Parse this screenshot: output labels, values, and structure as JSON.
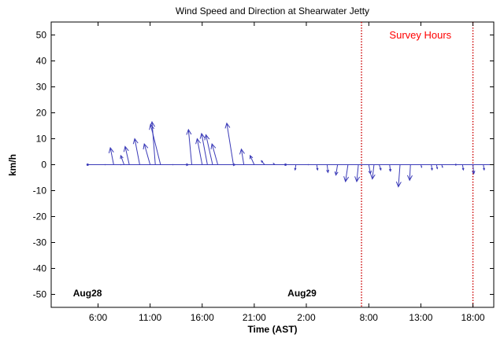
{
  "chart_data": {
    "type": "quiver",
    "title": "Wind Speed and Direction at Shearwater Jetty",
    "xlabel": "Time (AST)",
    "ylabel": "km/h",
    "x_tick_labels": [
      "6:00",
      "11:00",
      "16:00",
      "21:00",
      "2:00",
      "8:00",
      "13:00",
      "18:00"
    ],
    "x_tick_hours": [
      6,
      11,
      16,
      21,
      26,
      32,
      37,
      42
    ],
    "xlim_hours": [
      1.5,
      44
    ],
    "ylim": [
      -55,
      55
    ],
    "y_ticks": [
      -50,
      -40,
      -30,
      -20,
      -10,
      0,
      10,
      20,
      30,
      40,
      50
    ],
    "grid": false,
    "date_labels": [
      {
        "text": "Aug28",
        "hour": 3.6
      },
      {
        "text": "Aug29",
        "hour": 24.2
      }
    ],
    "survey": {
      "label": "Survey Hours",
      "start_hour": 31.3,
      "end_hour": 42.0,
      "color": "#cc0000"
    },
    "arrow_color": "#3b3bb8",
    "vectors": [
      {
        "hour": 5.0,
        "u": 0.3,
        "v": 0.0
      },
      {
        "hour": 6.5,
        "u": 0.5,
        "v": 0.0
      },
      {
        "hour": 7.5,
        "u": -2.0,
        "v": 6.5
      },
      {
        "hour": 8.0,
        "u": 0.5,
        "v": 0.0
      },
      {
        "hour": 8.5,
        "u": -2.0,
        "v": 3.5
      },
      {
        "hour": 9.0,
        "u": -2.5,
        "v": 7.0
      },
      {
        "hour": 10.0,
        "u": -3.0,
        "v": 10.0
      },
      {
        "hour": 11.0,
        "u": -3.5,
        "v": 8.0
      },
      {
        "hour": 11.5,
        "u": -2.0,
        "v": 16.5
      },
      {
        "hour": 12.0,
        "u": -6.0,
        "v": 15.5
      },
      {
        "hour": 13.0,
        "u": 0.5,
        "v": 0.0
      },
      {
        "hour": 14.0,
        "u": 1.5,
        "v": 0.0
      },
      {
        "hour": 15.0,
        "u": -2.0,
        "v": 13.5
      },
      {
        "hour": 16.0,
        "u": -3.0,
        "v": 10.0
      },
      {
        "hour": 16.5,
        "u": -3.5,
        "v": 12.0
      },
      {
        "hour": 17.0,
        "u": -4.0,
        "v": 11.5
      },
      {
        "hour": 17.5,
        "u": -3.5,
        "v": 8.0
      },
      {
        "hour": 18.5,
        "u": 1.5,
        "v": 0.0
      },
      {
        "hour": 19.0,
        "u": -4.0,
        "v": 16.0
      },
      {
        "hour": 20.0,
        "u": -1.5,
        "v": 6.0
      },
      {
        "hour": 21.0,
        "u": -2.5,
        "v": 3.5
      },
      {
        "hour": 22.0,
        "u": -2.0,
        "v": 1.5
      },
      {
        "hour": 23.0,
        "u": -1.0,
        "v": 0.5
      },
      {
        "hour": 24.0,
        "u": -0.3,
        "v": -0.2
      },
      {
        "hour": 25.0,
        "u": -0.5,
        "v": -2.0
      },
      {
        "hour": 26.0,
        "u": 0.5,
        "v": 0.0
      },
      {
        "hour": 27.0,
        "u": 0.5,
        "v": -2.0
      },
      {
        "hour": 28.0,
        "u": 0.5,
        "v": -3.0
      },
      {
        "hour": 29.0,
        "u": -1.0,
        "v": -4.0
      },
      {
        "hour": 30.0,
        "u": -1.5,
        "v": -6.5
      },
      {
        "hour": 31.0,
        "u": -1.0,
        "v": -6.5
      },
      {
        "hour": 32.0,
        "u": 1.0,
        "v": -3.5
      },
      {
        "hour": 32.5,
        "u": -1.0,
        "v": -5.5
      },
      {
        "hour": 33.0,
        "u": 1.0,
        "v": -2.0
      },
      {
        "hour": 34.0,
        "u": 0.5,
        "v": -2.5
      },
      {
        "hour": 35.0,
        "u": -1.0,
        "v": -8.5
      },
      {
        "hour": 36.0,
        "u": -0.5,
        "v": -6.0
      },
      {
        "hour": 37.0,
        "u": 0.5,
        "v": -1.0
      },
      {
        "hour": 38.0,
        "u": 0.5,
        "v": -2.0
      },
      {
        "hour": 38.5,
        "u": 0.5,
        "v": -1.5
      },
      {
        "hour": 39.0,
        "u": 0.5,
        "v": -1.0
      },
      {
        "hour": 40.0,
        "u": 1.0,
        "v": 0.0
      },
      {
        "hour": 41.0,
        "u": 0.5,
        "v": -2.0
      },
      {
        "hour": 42.0,
        "u": 0.5,
        "v": -3.5
      },
      {
        "hour": 43.0,
        "u": 0.5,
        "v": -2.0
      }
    ]
  }
}
